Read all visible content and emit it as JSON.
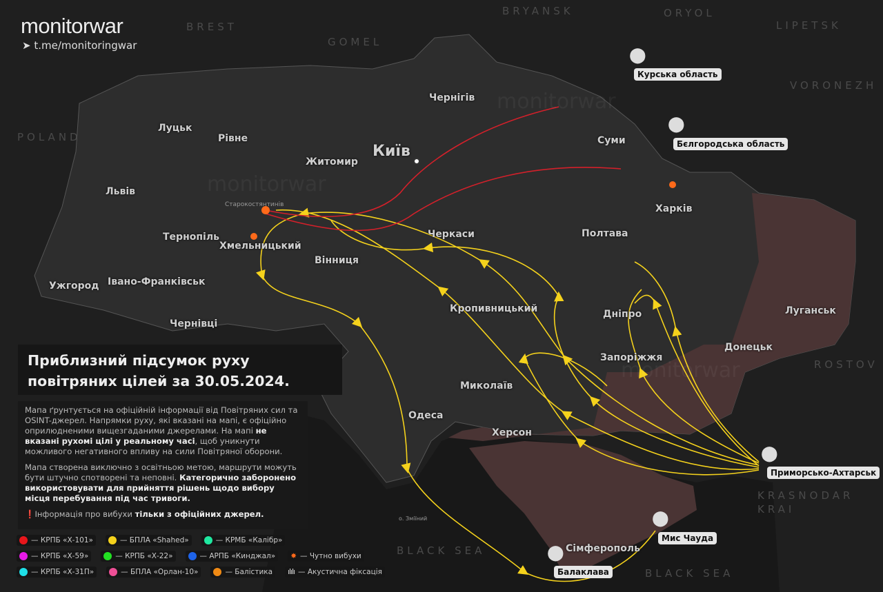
{
  "brand": {
    "logo": "monitorwar",
    "telegram": "t.me/monitoringwar"
  },
  "countries": [
    "BREST",
    "GOMEL",
    "BRYANSK",
    "ORYOL",
    "LIPETSK",
    "VORONEZH",
    "POLAND",
    "ROSTOV",
    "KRASNODAR",
    "KRAI",
    "BLACK SEA",
    "BLACK SEA"
  ],
  "cities": [
    "Київ",
    "Чернігів",
    "Суми",
    "Харків",
    "Полтава",
    "Житомир",
    "Рівне",
    "Луцьк",
    "Львів",
    "Тернопіль",
    "Хмельницький",
    "Вінниця",
    "Черкаси",
    "Івано-Франківськ",
    "Ужгород",
    "Чернівці",
    "Кропивницький",
    "Дніпро",
    "Запоріжжя",
    "Донецьк",
    "Луганськ",
    "Миколаїв",
    "Одеса",
    "Херсон",
    "Сімферополь",
    "Старокостянтинів",
    "о. Зміїний"
  ],
  "pins": [
    "Курська область",
    "Бєлгородська область",
    "Приморсько-Ахтарськ",
    "Мис Чауда",
    "Балаклава"
  ],
  "title": "Приблизний підсумок руху повітряних цілей за 30.05.2024.",
  "info": {
    "p1a": "Мапа ґрунтується на офіційній інформації від Повітряних сил та OSINT-джерел. Напрямки руху, які вказані на мапі, є офіційно оприлюдненими вищезгаданими джерелами. На мапі ",
    "p1b": "не вказані рухомі цілі у реальному часі",
    "p1c": ", щоб уникнути можливого негативного впливу на сили Повітряної оборони.",
    "p2a": "Мапа створена виключно з освітньою метою, маршрути можуть бути штучно спотворені та неповні. ",
    "p2b": "Категорично заборонено використовувати для прийняття рішень щодо вибору місця перебування під час тривоги.",
    "p3a": "Інформація про вибухи ",
    "p3b": "тільки з офіційних джерел."
  },
  "legend": [
    {
      "label": "— КРПБ «Х-101»",
      "color": "#e8161b"
    },
    {
      "label": "— БПЛА «Shahed»",
      "color": "#f5d21c"
    },
    {
      "label": "— КРМБ «Калібр»",
      "color": "#1fe8a0"
    },
    {
      "label": "— КРПБ «Х-59»",
      "color": "#e81ae8"
    },
    {
      "label": "— КРПБ «Х-22»",
      "color": "#22e022"
    },
    {
      "label": "— АРПБ «Кинджал»",
      "color": "#1e63e8"
    },
    {
      "label": "— Чутно вибухи",
      "icon": "explosion-icon"
    },
    {
      "label": "— КРПБ «Х-31П»",
      "color": "#1fe0e8"
    },
    {
      "label": "— БПЛА «Орлан-10»",
      "color": "#ee4f96"
    },
    {
      "label": "— Балістика",
      "color": "#f08a14"
    },
    {
      "label": "— Акустична фіксація",
      "icon": "soundwave-icon"
    }
  ],
  "watermark": "monitorwar",
  "colors": {
    "shahed": "#f5d21c",
    "x101": "#e8161b",
    "occupied": "#4a3434"
  }
}
